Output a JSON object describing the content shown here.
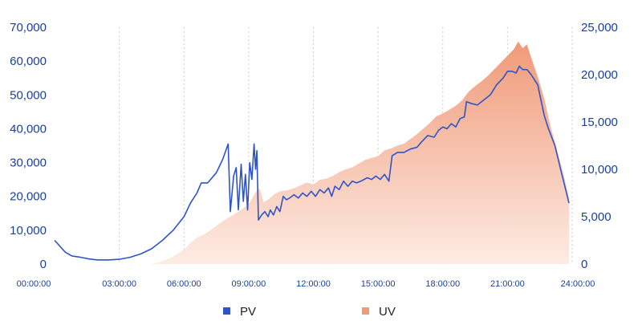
{
  "chart_data": {
    "type": "line",
    "title": "",
    "xlabel": "",
    "ylabel": "",
    "x_range_hours": [
      0,
      24
    ],
    "x_ticks": [
      "00:00:00",
      "03:00:00",
      "06:00:00",
      "09:00:00",
      "12:00:00",
      "15:00:00",
      "18:00:00",
      "21:00:00",
      "24:00:00"
    ],
    "y_left": {
      "ylim": [
        0,
        70000
      ],
      "ticks": [
        "0",
        "10,000",
        "20,000",
        "30,000",
        "40,000",
        "50,000",
        "60,000",
        "70,000"
      ]
    },
    "y_right": {
      "ylim": [
        0,
        25000
      ],
      "ticks": [
        "0",
        "5,000",
        "10,000",
        "15,000",
        "20,000",
        "25,000"
      ]
    },
    "grid": {
      "vertical": true,
      "horizontal": false
    },
    "legend_position": "bottom-center",
    "series": [
      {
        "name": "PV",
        "type": "line",
        "axis": "left",
        "color": "#2f54c8",
        "points": [
          [
            0.0,
            7000
          ],
          [
            0.5,
            3500
          ],
          [
            0.8,
            2400
          ],
          [
            1.2,
            2000
          ],
          [
            1.6,
            1500
          ],
          [
            2.0,
            1200
          ],
          [
            2.5,
            1200
          ],
          [
            3.0,
            1400
          ],
          [
            3.5,
            2000
          ],
          [
            4.0,
            3000
          ],
          [
            4.5,
            4500
          ],
          [
            5.0,
            7000
          ],
          [
            5.5,
            10000
          ],
          [
            6.0,
            14000
          ],
          [
            6.3,
            18000
          ],
          [
            6.6,
            21000
          ],
          [
            6.8,
            24000
          ],
          [
            7.1,
            24000
          ],
          [
            7.5,
            27000
          ],
          [
            7.8,
            31000
          ],
          [
            8.05,
            35500
          ],
          [
            8.15,
            15500
          ],
          [
            8.3,
            26000
          ],
          [
            8.42,
            28500
          ],
          [
            8.52,
            16000
          ],
          [
            8.65,
            29500
          ],
          [
            8.75,
            18500
          ],
          [
            8.85,
            26500
          ],
          [
            8.95,
            16000
          ],
          [
            9.05,
            30000
          ],
          [
            9.15,
            25000
          ],
          [
            9.25,
            35500
          ],
          [
            9.32,
            28000
          ],
          [
            9.38,
            33500
          ],
          [
            9.45,
            13000
          ],
          [
            9.6,
            14500
          ],
          [
            9.75,
            15500
          ],
          [
            9.9,
            14000
          ],
          [
            10.0,
            16000
          ],
          [
            10.15,
            14500
          ],
          [
            10.3,
            17000
          ],
          [
            10.45,
            15500
          ],
          [
            10.6,
            20000
          ],
          [
            10.75,
            19000
          ],
          [
            10.9,
            19500
          ],
          [
            11.1,
            20500
          ],
          [
            11.3,
            19500
          ],
          [
            11.5,
            21000
          ],
          [
            11.7,
            20000
          ],
          [
            11.9,
            21500
          ],
          [
            12.1,
            20000
          ],
          [
            12.3,
            22000
          ],
          [
            12.5,
            21000
          ],
          [
            12.7,
            22500
          ],
          [
            12.85,
            20000
          ],
          [
            13.0,
            23000
          ],
          [
            13.2,
            22000
          ],
          [
            13.4,
            24500
          ],
          [
            13.6,
            23000
          ],
          [
            13.8,
            24500
          ],
          [
            14.0,
            24000
          ],
          [
            14.2,
            24500
          ],
          [
            14.5,
            25500
          ],
          [
            14.7,
            25000
          ],
          [
            14.9,
            26000
          ],
          [
            15.1,
            25000
          ],
          [
            15.3,
            26500
          ],
          [
            15.5,
            24500
          ],
          [
            15.65,
            32000
          ],
          [
            15.9,
            33000
          ],
          [
            16.2,
            33000
          ],
          [
            16.5,
            34000
          ],
          [
            16.8,
            34500
          ],
          [
            17.0,
            36000
          ],
          [
            17.3,
            38000
          ],
          [
            17.6,
            37500
          ],
          [
            17.8,
            39500
          ],
          [
            18.0,
            40500
          ],
          [
            18.2,
            40000
          ],
          [
            18.4,
            41500
          ],
          [
            18.6,
            40500
          ],
          [
            18.8,
            43000
          ],
          [
            19.0,
            43500
          ],
          [
            19.1,
            48000
          ],
          [
            19.3,
            47500
          ],
          [
            19.6,
            47000
          ],
          [
            19.9,
            48500
          ],
          [
            20.2,
            50000
          ],
          [
            20.5,
            53000
          ],
          [
            20.8,
            55000
          ],
          [
            21.0,
            57000
          ],
          [
            21.2,
            57000
          ],
          [
            21.4,
            56500
          ],
          [
            21.55,
            58500
          ],
          [
            21.7,
            57500
          ],
          [
            21.9,
            57500
          ],
          [
            22.1,
            56000
          ],
          [
            22.4,
            53000
          ],
          [
            22.7,
            44000
          ],
          [
            22.9,
            40000
          ],
          [
            23.2,
            35000
          ],
          [
            23.5,
            27000
          ],
          [
            23.7,
            22000
          ],
          [
            23.85,
            18000
          ]
        ]
      },
      {
        "name": "UV",
        "type": "area",
        "axis": "right",
        "color_top": "#f09a78",
        "color_bottom": "#fdece4",
        "points": [
          [
            0.0,
            0
          ],
          [
            4.5,
            0
          ],
          [
            5.0,
            300
          ],
          [
            5.5,
            800
          ],
          [
            6.0,
            1500
          ],
          [
            6.3,
            2200
          ],
          [
            6.6,
            2800
          ],
          [
            7.0,
            3200
          ],
          [
            7.3,
            3700
          ],
          [
            7.6,
            4200
          ],
          [
            8.0,
            4800
          ],
          [
            8.5,
            5500
          ],
          [
            9.0,
            6300
          ],
          [
            9.3,
            7500
          ],
          [
            9.5,
            8000
          ],
          [
            9.7,
            6500
          ],
          [
            9.9,
            6800
          ],
          [
            10.2,
            7400
          ],
          [
            10.5,
            7700
          ],
          [
            10.8,
            7800
          ],
          [
            11.1,
            8000
          ],
          [
            11.4,
            8300
          ],
          [
            11.7,
            8600
          ],
          [
            12.0,
            8400
          ],
          [
            12.3,
            8900
          ],
          [
            12.6,
            9000
          ],
          [
            12.9,
            9300
          ],
          [
            13.2,
            9700
          ],
          [
            13.5,
            10000
          ],
          [
            13.8,
            10200
          ],
          [
            14.1,
            10600
          ],
          [
            14.4,
            11000
          ],
          [
            14.7,
            11200
          ],
          [
            15.0,
            11400
          ],
          [
            15.3,
            12000
          ],
          [
            15.6,
            12200
          ],
          [
            15.9,
            12500
          ],
          [
            16.2,
            12700
          ],
          [
            16.5,
            13200
          ],
          [
            16.8,
            13700
          ],
          [
            17.1,
            14300
          ],
          [
            17.4,
            14900
          ],
          [
            17.7,
            15600
          ],
          [
            18.0,
            15900
          ],
          [
            18.3,
            16300
          ],
          [
            18.6,
            16700
          ],
          [
            18.9,
            17300
          ],
          [
            19.2,
            18200
          ],
          [
            19.5,
            18800
          ],
          [
            19.8,
            19300
          ],
          [
            20.1,
            19900
          ],
          [
            20.4,
            20600
          ],
          [
            20.7,
            21300
          ],
          [
            21.0,
            22000
          ],
          [
            21.3,
            22700
          ],
          [
            21.5,
            23500
          ],
          [
            21.7,
            22800
          ],
          [
            21.9,
            23200
          ],
          [
            22.1,
            21800
          ],
          [
            22.4,
            19800
          ],
          [
            22.7,
            17500
          ],
          [
            23.0,
            14500
          ],
          [
            23.3,
            12000
          ],
          [
            23.6,
            9500
          ],
          [
            23.85,
            7000
          ],
          [
            23.85,
            0
          ]
        ]
      }
    ]
  }
}
